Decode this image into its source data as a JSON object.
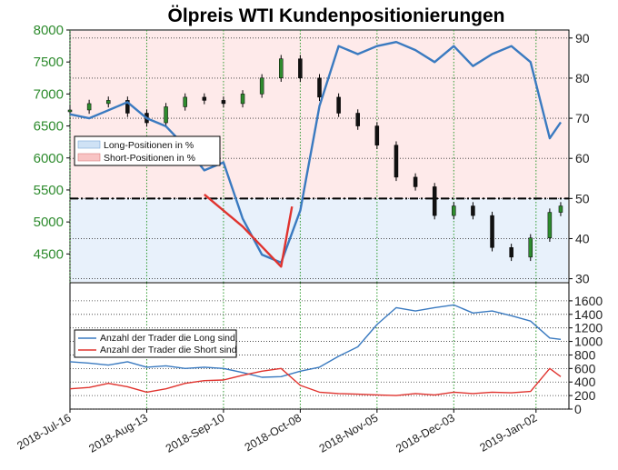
{
  "chart_data": [
    {
      "type": "line",
      "title": "Ölpreis WTI Kundenpositionierungen",
      "x_axis": {
        "type": "date",
        "range": [
          "2018-07-16",
          "2019-01-14"
        ],
        "tick_labels": [
          "2018-Jul-16",
          "2018-Aug-13",
          "2018-Sep-10",
          "2018-Oct-08",
          "2018-Nov-05",
          "2018-Dec-03",
          "2019-Jan-02"
        ]
      },
      "y_left": {
        "ticks": [
          4500,
          5000,
          5500,
          6000,
          6500,
          7000,
          7500,
          8000
        ],
        "range": [
          4050,
          8000
        ]
      },
      "y_right": {
        "ticks": [
          30,
          40,
          50,
          60,
          70,
          80,
          90
        ],
        "range": [
          29,
          92
        ]
      },
      "reference_line": {
        "axis": "right",
        "value": 50,
        "style": "dash-dot"
      },
      "legend": {
        "position": "left-middle",
        "entries": [
          "Long-Positionen in %",
          "Short-Positionen in %"
        ]
      },
      "grid": true,
      "series": [
        {
          "name": "Long-Positionen in %",
          "axis": "right",
          "color": "#3a7ac0",
          "x": [
            "2018-07-16",
            "2018-07-23",
            "2018-07-30",
            "2018-08-06",
            "2018-08-13",
            "2018-08-20",
            "2018-08-27",
            "2018-09-03",
            "2018-09-10",
            "2018-09-17",
            "2018-09-24",
            "2018-10-01",
            "2018-10-08",
            "2018-10-15",
            "2018-10-22",
            "2018-10-29",
            "2018-11-05",
            "2018-11-12",
            "2018-11-19",
            "2018-11-26",
            "2018-12-03",
            "2018-12-10",
            "2018-12-17",
            "2018-12-24",
            "2018-12-31",
            "2019-01-07",
            "2019-01-11"
          ],
          "values": [
            71,
            70,
            72,
            74,
            70,
            68,
            63,
            57,
            59,
            45,
            36,
            34,
            47,
            73,
            88,
            86,
            88,
            89,
            87,
            84,
            88,
            83,
            86,
            88,
            84,
            65,
            69
          ]
        },
        {
          "name": "Short-Positionen in %",
          "axis": "right",
          "color": "#e0332e",
          "x": [
            "2018-09-03",
            "2018-09-17",
            "2018-09-24",
            "2018-10-01",
            "2018-10-05"
          ],
          "values": [
            51,
            43,
            38,
            33,
            48
          ]
        },
        {
          "name": "Ölpreis WTI",
          "axis": "left",
          "style": "candlestick",
          "color": "#2e8b2e",
          "x": [
            "2018-07-16",
            "2018-07-23",
            "2018-07-30",
            "2018-08-06",
            "2018-08-13",
            "2018-08-20",
            "2018-08-27",
            "2018-09-03",
            "2018-09-10",
            "2018-09-17",
            "2018-09-24",
            "2018-10-01",
            "2018-10-08",
            "2018-10-15",
            "2018-10-22",
            "2018-10-29",
            "2018-11-05",
            "2018-11-12",
            "2018-11-19",
            "2018-11-26",
            "2018-12-03",
            "2018-12-10",
            "2018-12-17",
            "2018-12-24",
            "2018-12-31",
            "2019-01-07",
            "2019-01-11"
          ],
          "values": [
            6750,
            6850,
            6900,
            6700,
            6550,
            6800,
            6950,
            6900,
            6850,
            7000,
            7250,
            7550,
            7250,
            6950,
            6700,
            6500,
            6200,
            5700,
            5550,
            5100,
            5250,
            5100,
            4600,
            4450,
            4750,
            5150,
            5250
          ]
        }
      ]
    },
    {
      "type": "line",
      "x_axis": {
        "type": "date",
        "range": [
          "2018-07-16",
          "2019-01-14"
        ]
      },
      "y_right": {
        "ticks": [
          0,
          200,
          400,
          600,
          800,
          1000,
          1200,
          1400,
          1600
        ],
        "range": [
          0,
          1760
        ]
      },
      "legend": {
        "position": "left-middle",
        "entries": [
          "Anzahl der Trader die Long sind",
          "Anzahl der Trader die Short sind"
        ]
      },
      "grid": true,
      "series": [
        {
          "name": "Anzahl der Trader die Long sind",
          "color": "#3a7ac0",
          "x": [
            "2018-07-16",
            "2018-07-23",
            "2018-07-30",
            "2018-08-06",
            "2018-08-13",
            "2018-08-20",
            "2018-08-27",
            "2018-09-03",
            "2018-09-10",
            "2018-09-17",
            "2018-09-24",
            "2018-10-01",
            "2018-10-08",
            "2018-10-15",
            "2018-10-22",
            "2018-10-29",
            "2018-11-05",
            "2018-11-12",
            "2018-11-19",
            "2018-11-26",
            "2018-12-03",
            "2018-12-10",
            "2018-12-17",
            "2018-12-24",
            "2018-12-31",
            "2019-01-07",
            "2019-01-11"
          ],
          "values": [
            700,
            680,
            650,
            700,
            620,
            640,
            600,
            620,
            600,
            540,
            470,
            480,
            560,
            620,
            780,
            920,
            1250,
            1500,
            1450,
            1500,
            1540,
            1420,
            1450,
            1380,
            1300,
            1050,
            1030
          ]
        },
        {
          "name": "Anzahl der Trader die Short sind",
          "color": "#e0332e",
          "x": [
            "2018-07-16",
            "2018-07-23",
            "2018-07-30",
            "2018-08-06",
            "2018-08-13",
            "2018-08-20",
            "2018-08-27",
            "2018-09-03",
            "2018-09-10",
            "2018-09-17",
            "2018-09-24",
            "2018-10-01",
            "2018-10-08",
            "2018-10-15",
            "2018-10-22",
            "2018-10-29",
            "2018-11-05",
            "2018-11-12",
            "2018-11-19",
            "2018-11-26",
            "2018-12-03",
            "2018-12-10",
            "2018-12-17",
            "2018-12-24",
            "2018-12-31",
            "2019-01-07",
            "2019-01-11"
          ],
          "values": [
            300,
            320,
            380,
            330,
            250,
            300,
            380,
            420,
            430,
            500,
            560,
            600,
            350,
            250,
            230,
            220,
            210,
            200,
            230,
            210,
            250,
            230,
            250,
            240,
            260,
            600,
            480
          ]
        }
      ]
    }
  ]
}
